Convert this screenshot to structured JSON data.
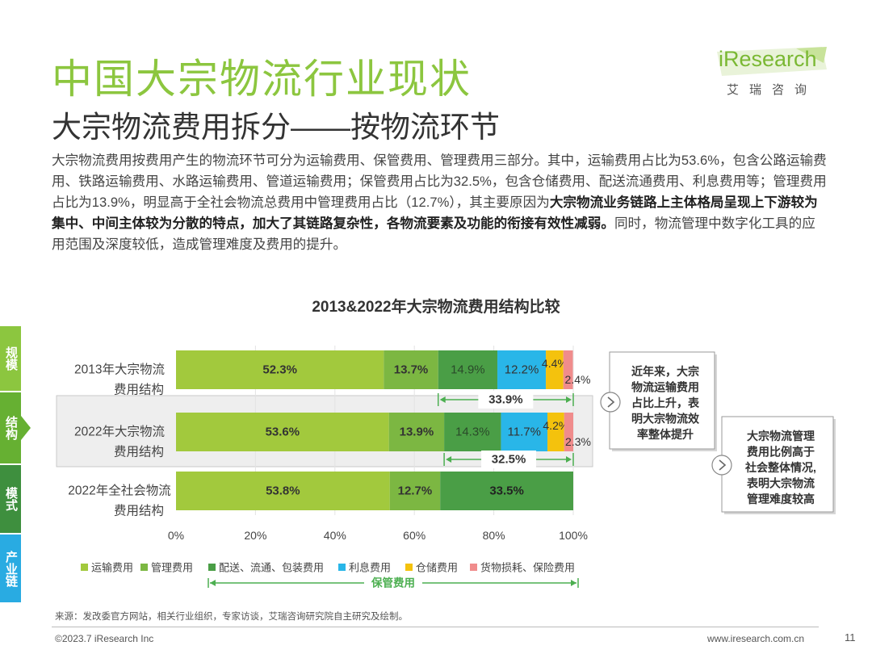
{
  "header": {
    "title": "中国大宗物流行业现状",
    "subtitle": "大宗物流费用拆分——按物流环节"
  },
  "logo": {
    "text": "iResearch",
    "cn": "艾瑞咨询"
  },
  "description": {
    "part1": "大宗物流费用按费用产生的物流环节可分为运输费用、保管费用、管理费用三部分。其中，运输费用占比为53.6%，包含公路运输费用、铁路运输费用、水路运输费用、管道运输费用；保管费用占比为32.5%，包含仓储费用、配送流通费用、利息费用等；管理费用占比为13.9%，明显高于全社会物流总费用中管理费用占比（12.7%），其主要原因为",
    "bold": "大宗物流业务链路上主体格局呈现上下游较为集中、中间主体较为分散的特点，加大了其链路复杂性，各物流要素及功能的衔接有效性减弱。",
    "part2": "同时，物流管理中数字化工具的应用范围及深度较低，造成管理难度及费用的提升。"
  },
  "side_nav": [
    {
      "label": "规模",
      "color": "#8cc63f"
    },
    {
      "label": "结构",
      "color": "#66b032"
    },
    {
      "label": "模式",
      "color": "#3e8f3e"
    },
    {
      "label": "产业链",
      "color": "#29abe2"
    }
  ],
  "chart_data": {
    "type": "bar",
    "orientation": "horizontal",
    "stacked": true,
    "title": "2013&2022年大宗物流费用结构比较",
    "categories": [
      [
        "2013年大宗物流",
        "费用结构"
      ],
      [
        "2022年大宗物流",
        "费用结构"
      ],
      [
        "2022年全社会物流",
        "费用结构"
      ]
    ],
    "series": [
      {
        "name": "运输费用",
        "color": "#a2c93d",
        "values": [
          52.3,
          53.6,
          53.8
        ],
        "labels": [
          "52.3%",
          "53.6%",
          "53.8%"
        ]
      },
      {
        "name": "管理费用",
        "color": "#7cb742",
        "values": [
          13.7,
          13.9,
          12.7
        ],
        "labels": [
          "13.7%",
          "13.9%",
          "12.7%"
        ]
      },
      {
        "name": "配送、流通、包装费用",
        "color": "#4a9e46",
        "values": [
          14.9,
          14.3,
          33.5
        ],
        "labels": [
          "14.9%",
          "14.3%",
          "33.5%"
        ]
      },
      {
        "name": "利息费用",
        "color": "#29b6e8",
        "values": [
          12.2,
          11.7,
          0
        ],
        "labels": [
          "12.2%",
          "11.7%",
          ""
        ]
      },
      {
        "name": "仓储费用",
        "color": "#f4c20d",
        "values": [
          4.4,
          4.2,
          0
        ],
        "labels": [
          "4.4%",
          "4.2%",
          ""
        ]
      },
      {
        "name": "货物损耗、保险费用",
        "color": "#f08c8c",
        "values": [
          2.4,
          2.3,
          0
        ],
        "labels": [
          "2.4%",
          "2.3%",
          ""
        ]
      }
    ],
    "xticks": [
      "0%",
      "20%",
      "40%",
      "60%",
      "80%",
      "100%"
    ],
    "xlim": [
      0,
      100
    ],
    "brackets": [
      {
        "label": "33.9%",
        "from": 66.0,
        "to": 100
      },
      {
        "label": "32.5%",
        "from": 67.5,
        "to": 100
      }
    ],
    "legend_group_label": "保管费用",
    "legend_position": "bottom",
    "callouts": [
      {
        "lines": [
          "近年来，大宗",
          "物流运输费用",
          "占比上升，表",
          "明大宗物流效",
          "率整体提升"
        ]
      },
      {
        "lines": [
          "大宗物流管理",
          "费用比例高于",
          "社会整体情况,",
          "表明大宗物流",
          "管理难度较高"
        ]
      }
    ]
  },
  "footer": {
    "source": "来源：发改委官方网站，相关行业组织，专家访谈，艾瑞咨询研究院自主研究及绘制。",
    "copyright": "©2023.7 iResearch Inc",
    "url": "www.iresearch.com.cn",
    "page": "11"
  }
}
